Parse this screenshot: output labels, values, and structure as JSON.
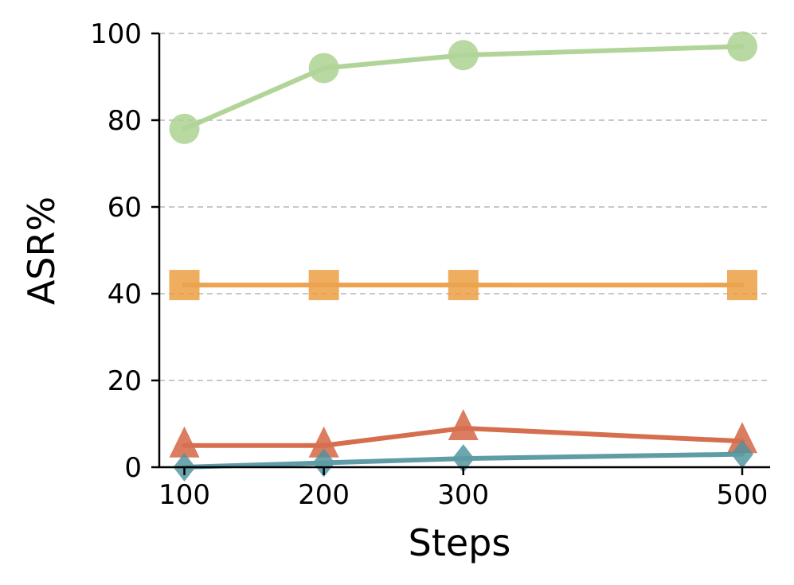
{
  "chart_data": {
    "type": "line",
    "x": [
      100,
      200,
      300,
      500
    ],
    "xticks": [
      100,
      200,
      300,
      500
    ],
    "xlim": [
      82,
      520
    ],
    "ylim": [
      0,
      100
    ],
    "yticks": [
      0,
      20,
      40,
      60,
      80,
      100
    ],
    "xlabel": "Steps",
    "ylabel": "ASR%",
    "grid": "horizontal dashed",
    "series": [
      {
        "values": [
          78,
          92,
          95,
          97
        ],
        "color": "#a8d08d",
        "marker": "circle"
      },
      {
        "values": [
          42,
          42,
          42,
          42
        ],
        "color": "#eb9a3c",
        "marker": "square"
      },
      {
        "values": [
          5,
          5,
          9,
          6
        ],
        "color": "#d15f3d",
        "marker": "triangle"
      },
      {
        "values": [
          0,
          1,
          2,
          3
        ],
        "color": "#4e929c",
        "marker": "diamond"
      }
    ]
  }
}
